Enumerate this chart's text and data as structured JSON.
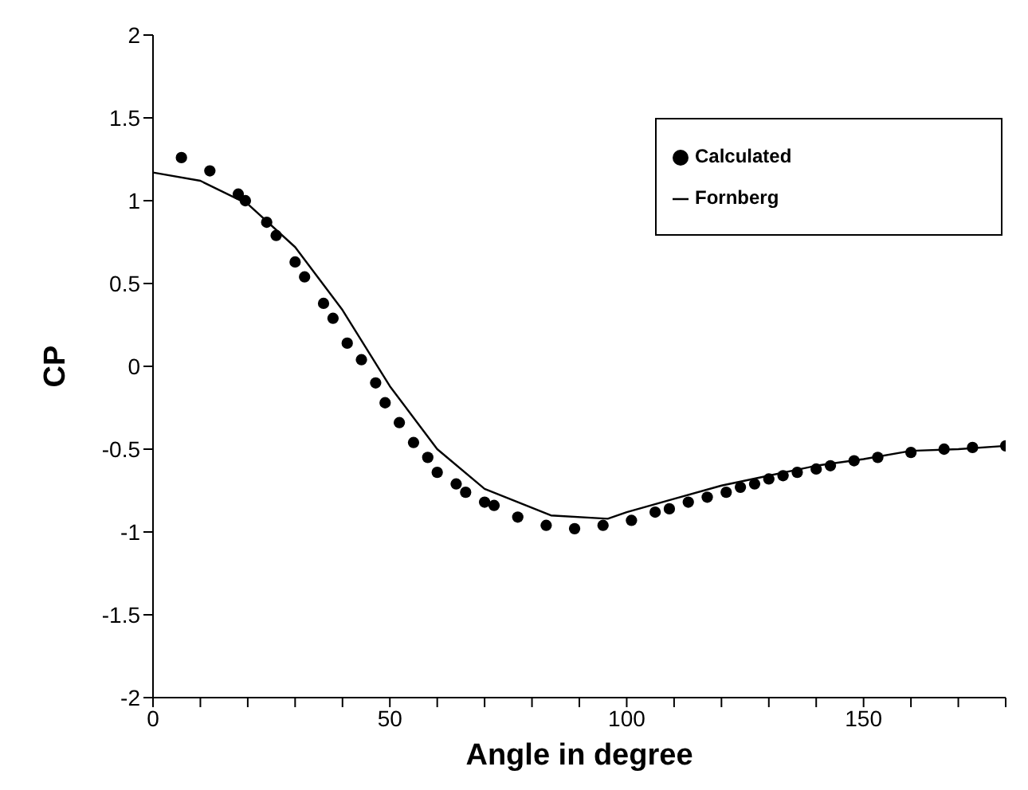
{
  "chart_data": {
    "type": "scatter",
    "xlabel": "Angle in degree",
    "ylabel": "CP",
    "xlim": [
      0,
      180
    ],
    "ylim": [
      -2,
      2
    ],
    "xticks": [
      0,
      {
        "value": 10,
        "label": null
      },
      {
        "value": 20,
        "label": null
      },
      {
        "value": 30,
        "label": null
      },
      {
        "value": 40,
        "label": null
      },
      50,
      {
        "value": 60,
        "label": null
      },
      {
        "value": 70,
        "label": null
      },
      {
        "value": 80,
        "label": null
      },
      {
        "value": 90,
        "label": null
      },
      100,
      {
        "value": 110,
        "label": null
      },
      {
        "value": 120,
        "label": null
      },
      {
        "value": 130,
        "label": null
      },
      {
        "value": 140,
        "label": null
      },
      150,
      {
        "value": 160,
        "label": null
      },
      {
        "value": 170,
        "label": null
      },
      {
        "value": 180,
        "label": null
      }
    ],
    "yticks": [
      -2,
      -1.5,
      -1,
      -0.5,
      0,
      0.5,
      1,
      1.5,
      2
    ],
    "grid": false,
    "legend": "top right",
    "marker": "circle",
    "series": [
      {
        "name": "Calculated",
        "color": "#000000",
        "x": [
          6,
          12,
          18,
          19.5,
          24,
          26,
          30,
          32,
          36,
          38,
          41,
          44,
          47,
          49,
          52,
          55,
          58,
          60,
          64,
          66,
          70,
          72,
          77,
          83,
          89,
          95,
          101,
          106,
          109,
          113,
          117,
          121,
          124,
          127,
          130,
          133,
          136,
          140,
          143,
          148,
          153,
          160,
          167,
          173,
          180
        ],
        "values": [
          1.26,
          1.18,
          1.04,
          1.0,
          0.87,
          0.79,
          0.63,
          0.54,
          0.38,
          0.29,
          0.14,
          0.04,
          -0.1,
          -0.22,
          -0.34,
          -0.46,
          -0.55,
          -0.64,
          -0.71,
          -0.76,
          -0.82,
          -0.84,
          -0.91,
          -0.96,
          -0.98,
          -0.96,
          -0.93,
          -0.88,
          -0.86,
          -0.82,
          -0.79,
          -0.76,
          -0.73,
          -0.71,
          -0.68,
          -0.66,
          -0.64,
          -0.62,
          -0.6,
          -0.57,
          -0.55,
          -0.52,
          -0.5,
          -0.49,
          -0.48
        ]
      },
      {
        "name": "Fornberg",
        "type": "line",
        "color": "#000000",
        "marker": "none",
        "line_style": "solid",
        "x": [
          0,
          10,
          20,
          30,
          40,
          50,
          60,
          70,
          84,
          96,
          100,
          110,
          120,
          130,
          140,
          150,
          160,
          170,
          180
        ],
        "values": [
          1.17,
          1.12,
          0.98,
          0.72,
          0.34,
          -0.12,
          -0.5,
          -0.74,
          -0.9,
          -0.92,
          -0.88,
          -0.8,
          -0.72,
          -0.66,
          -0.6,
          -0.56,
          -0.51,
          -0.5,
          -0.48
        ]
      }
    ]
  }
}
